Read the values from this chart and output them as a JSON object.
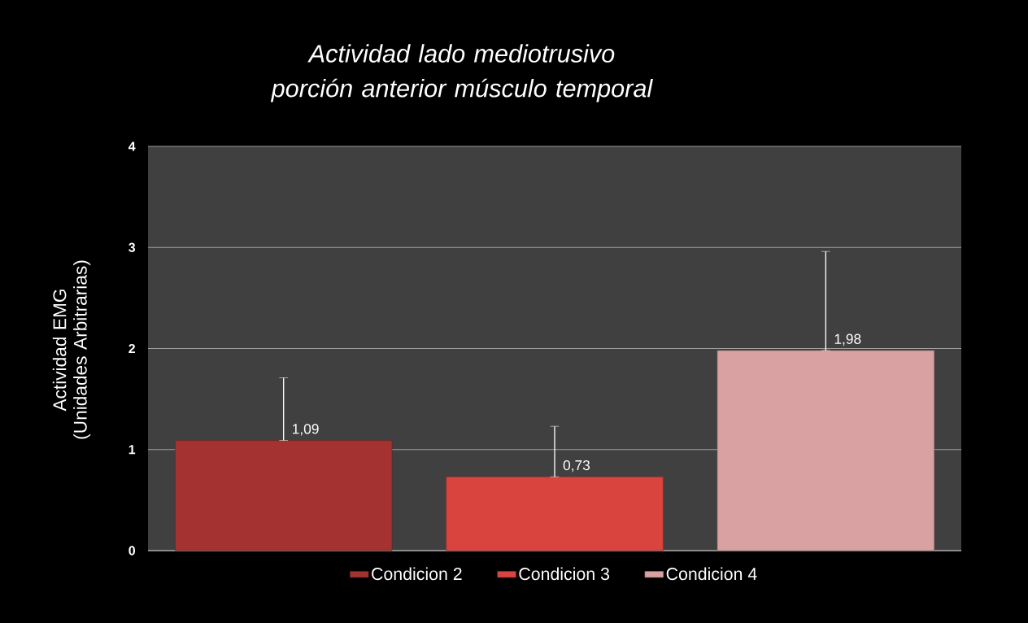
{
  "chart_data": {
    "type": "bar",
    "title": "Actividad lado mediotrusivo porción anterior músculo temporal",
    "ylabel": "Actividad EMG (Unidades Arbitrarias)",
    "categories": [
      null,
      null,
      null
    ],
    "series": [
      {
        "name": "Condicion 2",
        "color": "#a33230",
        "values": [
          1.09,
          null,
          null
        ],
        "errors": [
          [
            1.09,
            1.71
          ],
          null,
          null
        ],
        "value_labels": [
          "1,09",
          null,
          null
        ]
      },
      {
        "name": "Condicion 3",
        "color": "#d9443f",
        "values": [
          null,
          0.73,
          null
        ],
        "errors": [
          null,
          [
            0.73,
            1.23
          ],
          null
        ],
        "value_labels": [
          null,
          "0,73",
          null
        ]
      },
      {
        "name": "Condicion 4",
        "color": "#d9a1a1",
        "values": [
          null,
          null,
          1.98
        ],
        "errors": [
          null,
          null,
          [
            1.98,
            2.96
          ]
        ],
        "value_labels": [
          null,
          null,
          "1,98"
        ]
      }
    ],
    "ylim": [
      0,
      4
    ],
    "yticks": [
      0,
      1,
      2,
      3,
      4
    ],
    "grid": "y",
    "legend": "bottom"
  }
}
